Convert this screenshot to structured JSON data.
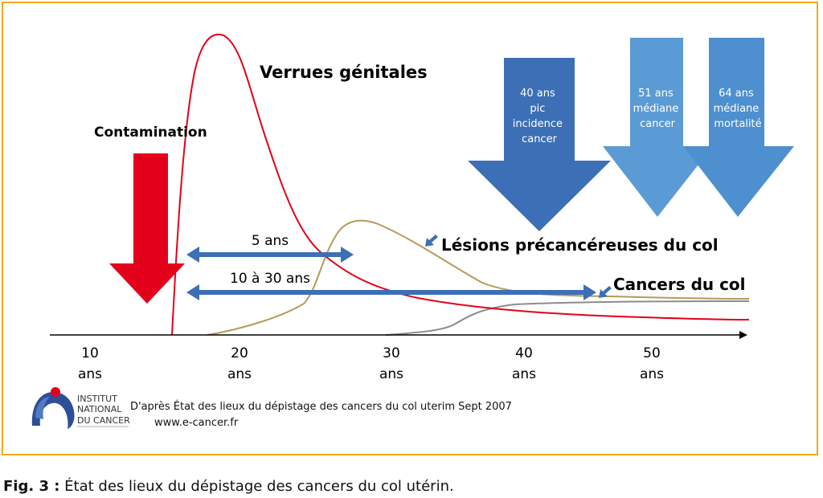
{
  "labels": {
    "contamination": "Contamination",
    "verrues": "Verrues génitales",
    "lesions": "Lésions précancéreuses du col",
    "cancers": "Cancers du col",
    "span_short": "5 ans",
    "span_long": "10 à 30 ans"
  },
  "big_arrows": [
    {
      "lines": [
        "40 ans",
        "pic",
        "incidence",
        "cancer"
      ],
      "color": "#3d6fb6"
    },
    {
      "lines": [
        "51 ans",
        "médiane",
        "cancer"
      ],
      "color": "#5b9bd5"
    },
    {
      "lines": [
        "64 ans",
        "médiane",
        "mortalité"
      ],
      "color": "#5b9bd5"
    }
  ],
  "axis": {
    "ticks": [
      {
        "value": "10",
        "unit": "ans"
      },
      {
        "value": "20",
        "unit": "ans"
      },
      {
        "value": "30",
        "unit": "ans"
      },
      {
        "value": "40",
        "unit": "ans"
      },
      {
        "value": "50",
        "unit": "ans"
      }
    ]
  },
  "source": {
    "logo_text": [
      "INSTITUT",
      "NATIONAL",
      "DU CANCER"
    ],
    "line1": "D'après État des lieux du dépistage des cancers du col uterim Sept 2007",
    "line2": "www.e-cancer.fr"
  },
  "caption": {
    "prefix": "Fig. 3 :",
    "text": " État des lieux du dépistage des cancers du col utérin."
  },
  "colors": {
    "frame": "#f0a81c",
    "contamination_arrow": "#e3001b",
    "verrues_curve": "#e3001b",
    "lesions_curve": "#b59a5a",
    "cancers_curve": "#8c8c8c",
    "span_arrows": "#3d6fb6"
  }
}
